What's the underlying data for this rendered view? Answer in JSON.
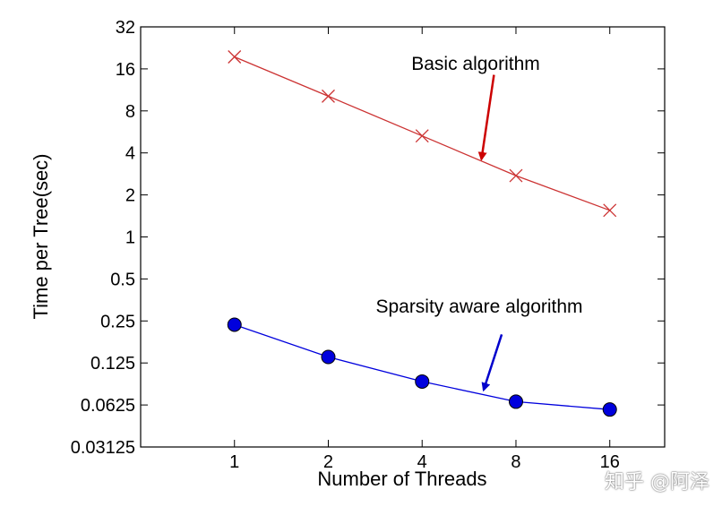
{
  "watermark": "知乎 @阿泽",
  "chart_data": {
    "type": "line",
    "xlabel": "Number of Threads",
    "ylabel": "Time per Tree(sec)",
    "x": [
      1,
      2,
      4,
      8,
      16
    ],
    "x_scale": "log2",
    "y_scale": "log2",
    "xlim": [
      0.5,
      24
    ],
    "ylim": [
      0.03125,
      32
    ],
    "x_tick_labels": [
      "1",
      "2",
      "4",
      "8",
      "16"
    ],
    "y_ticks": [
      0.03125,
      0.0625,
      0.125,
      0.25,
      0.5,
      1,
      2,
      4,
      8,
      16,
      32
    ],
    "y_tick_labels": [
      "0.03125",
      "0.0625",
      "0.125",
      "0.25",
      "0.5",
      "1",
      "2",
      "4",
      "8",
      "16",
      "32"
    ],
    "grid": false,
    "series": [
      {
        "key": "basic",
        "values": [
          19.5,
          10.2,
          5.3,
          2.75,
          1.55
        ],
        "color": "#cc3333",
        "marker": "x"
      },
      {
        "key": "sparse",
        "values": [
          0.235,
          0.138,
          0.092,
          0.066,
          0.058
        ],
        "color": "#0000dd",
        "marker": "circle"
      }
    ],
    "annotations": [
      {
        "text": "Basic algorithm",
        "series": "basic",
        "color": "#cc0000",
        "arrow_tip": {
          "x": 6.2,
          "y": 3.6
        },
        "arrow_tail": {
          "x": 6.8,
          "y": 14.5
        }
      },
      {
        "text": "Sparsity aware algorithm",
        "series": "sparse",
        "color": "#0000cc",
        "arrow_tip": {
          "x": 6.3,
          "y": 0.08
        },
        "arrow_tail": {
          "x": 7.2,
          "y": 0.2
        }
      }
    ]
  }
}
